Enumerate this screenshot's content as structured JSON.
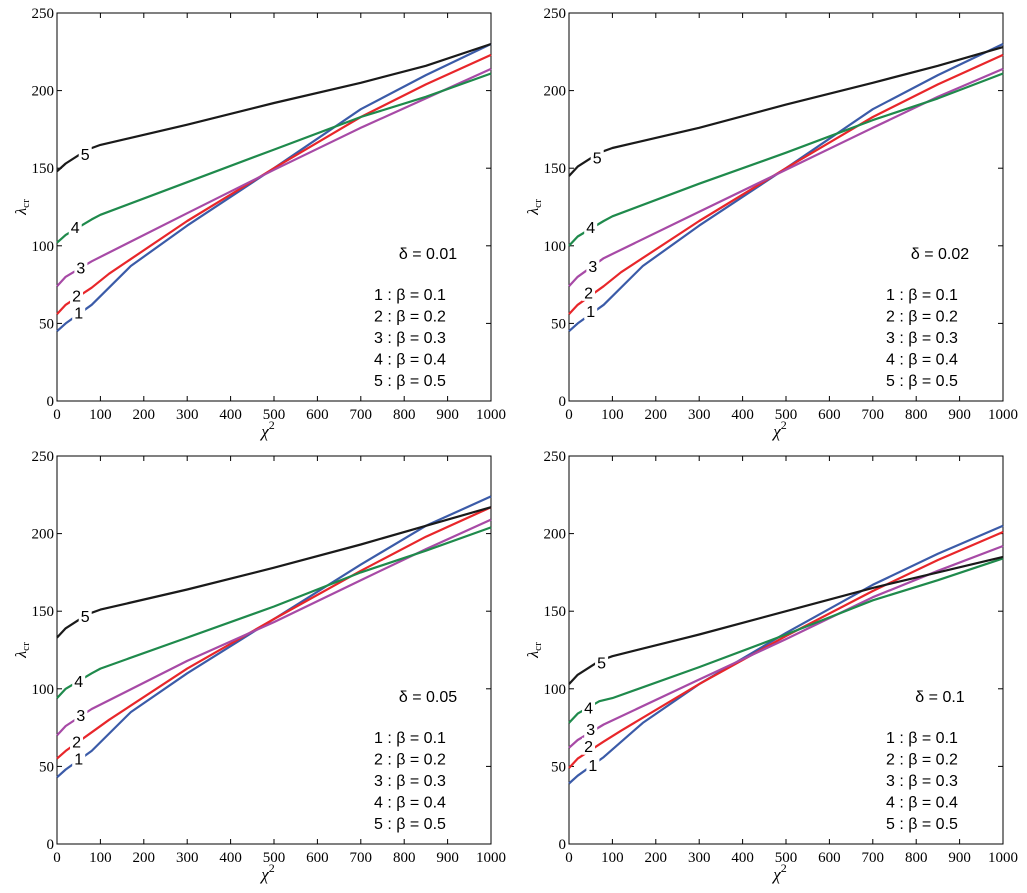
{
  "chart_data": [
    {
      "type": "line",
      "panel": "top-left",
      "xlabel": "χ",
      "xlabel_sup": "2",
      "ylabel": "λ",
      "ylabel_sub": "cr",
      "xlim": [
        0,
        1000
      ],
      "ylim": [
        0,
        250
      ],
      "xticks": [
        "0",
        "100",
        "200",
        "300",
        "400",
        "500",
        "600",
        "700",
        "800",
        "900",
        "1000"
      ],
      "yticks": [
        "0",
        "50",
        "100",
        "150",
        "200",
        "250"
      ],
      "annotation": "δ = 0.01",
      "legend": [
        "1 : β = 0.1",
        "2 : β = 0.2",
        "3 : β = 0.3",
        "4 : β = 0.4",
        "5 : β = 0.5"
      ],
      "series": [
        {
          "name": "1",
          "color": "#3b5ba8",
          "x": [
            0,
            20,
            80,
            170,
            300,
            500,
            700,
            850,
            1000
          ],
          "y": [
            45,
            50,
            62,
            87,
            113,
            150,
            188,
            210,
            230
          ]
        },
        {
          "name": "2",
          "color": "#e8262a",
          "x": [
            0,
            20,
            80,
            120,
            300,
            500,
            700,
            850,
            1000
          ],
          "y": [
            56,
            62,
            73,
            82,
            116,
            150,
            183,
            204,
            223
          ]
        },
        {
          "name": "3",
          "color": "#a74aa6",
          "x": [
            0,
            20,
            80,
            300,
            500,
            700,
            850,
            1000
          ],
          "y": [
            74,
            80,
            90,
            121,
            149,
            176,
            195,
            214
          ]
        },
        {
          "name": "4",
          "color": "#1f8a4c",
          "x": [
            0,
            20,
            80,
            100,
            300,
            500,
            700,
            850,
            1000
          ],
          "y": [
            102,
            107,
            117,
            120,
            141,
            162,
            183,
            196,
            211
          ]
        },
        {
          "name": "5",
          "color": "#1a1a1a",
          "x": [
            0,
            20,
            70,
            100,
            300,
            500,
            700,
            850,
            1000
          ],
          "y": [
            148,
            153,
            162,
            165,
            178,
            192,
            205,
            216,
            230
          ]
        }
      ],
      "curve_labels": [
        {
          "text": "1",
          "x": 50,
          "y": 57
        },
        {
          "text": "2",
          "x": 45,
          "y": 68
        },
        {
          "text": "3",
          "x": 55,
          "y": 86
        },
        {
          "text": "4",
          "x": 42,
          "y": 112
        },
        {
          "text": "5",
          "x": 65,
          "y": 159
        }
      ]
    },
    {
      "type": "line",
      "panel": "top-right",
      "xlabel": "χ",
      "xlabel_sup": "2",
      "ylabel": "λ",
      "ylabel_sub": "cr",
      "xlim": [
        0,
        1000
      ],
      "ylim": [
        0,
        250
      ],
      "xticks": [
        "0",
        "100",
        "200",
        "300",
        "400",
        "500",
        "600",
        "700",
        "800",
        "900",
        "1000"
      ],
      "yticks": [
        "0",
        "50",
        "100",
        "150",
        "200",
        "250"
      ],
      "annotation": "δ = 0.02",
      "legend": [
        "1 : β = 0.1",
        "2 : β = 0.2",
        "3 : β = 0.3",
        "4 : β = 0.4",
        "5 : β = 0.5"
      ],
      "series": [
        {
          "name": "1",
          "color": "#3b5ba8",
          "x": [
            0,
            20,
            80,
            170,
            300,
            500,
            700,
            850,
            1000
          ],
          "y": [
            45,
            50,
            62,
            87,
            113,
            150,
            188,
            210,
            230
          ]
        },
        {
          "name": "2",
          "color": "#e8262a",
          "x": [
            0,
            20,
            80,
            120,
            300,
            500,
            700,
            850,
            1000
          ],
          "y": [
            56,
            62,
            74,
            83,
            116,
            150,
            183,
            204,
            223
          ]
        },
        {
          "name": "3",
          "color": "#a74aa6",
          "x": [
            0,
            20,
            80,
            300,
            500,
            700,
            850,
            1000
          ],
          "y": [
            74,
            80,
            92,
            122,
            149,
            176,
            196,
            214
          ]
        },
        {
          "name": "4",
          "color": "#1f8a4c",
          "x": [
            0,
            20,
            80,
            100,
            300,
            500,
            700,
            850,
            1000
          ],
          "y": [
            100,
            106,
            116,
            119,
            140,
            160,
            181,
            195,
            211
          ]
        },
        {
          "name": "5",
          "color": "#1a1a1a",
          "x": [
            0,
            20,
            70,
            100,
            300,
            500,
            700,
            850,
            1000
          ],
          "y": [
            145,
            151,
            160,
            163,
            176,
            191,
            205,
            216,
            228
          ]
        }
      ],
      "curve_labels": [
        {
          "text": "1",
          "x": 50,
          "y": 58
        },
        {
          "text": "2",
          "x": 45,
          "y": 70
        },
        {
          "text": "3",
          "x": 55,
          "y": 87
        },
        {
          "text": "4",
          "x": 50,
          "y": 112
        },
        {
          "text": "5",
          "x": 65,
          "y": 157
        }
      ]
    },
    {
      "type": "line",
      "panel": "bottom-left",
      "xlabel": "χ",
      "xlabel_sup": "2",
      "ylabel": "λ",
      "ylabel_sub": "cr",
      "xlim": [
        0,
        1000
      ],
      "ylim": [
        0,
        250
      ],
      "xticks": [
        "0",
        "100",
        "200",
        "300",
        "400",
        "500",
        "600",
        "700",
        "800",
        "900",
        "1000"
      ],
      "yticks": [
        "0",
        "50",
        "100",
        "150",
        "200",
        "250"
      ],
      "annotation": "δ = 0.05",
      "legend": [
        "1 : β = 0.1",
        "2 : β = 0.2",
        "3 : β = 0.3",
        "4 : β = 0.4",
        "5 : β = 0.5"
      ],
      "series": [
        {
          "name": "1",
          "color": "#3b5ba8",
          "x": [
            0,
            20,
            80,
            170,
            300,
            500,
            700,
            850,
            1000
          ],
          "y": [
            43,
            48,
            60,
            85,
            110,
            145,
            180,
            205,
            224
          ]
        },
        {
          "name": "2",
          "color": "#e8262a",
          "x": [
            0,
            20,
            80,
            120,
            300,
            500,
            700,
            850,
            1000
          ],
          "y": [
            55,
            60,
            72,
            80,
            113,
            145,
            176,
            198,
            217
          ]
        },
        {
          "name": "3",
          "color": "#a74aa6",
          "x": [
            0,
            20,
            80,
            300,
            500,
            700,
            850,
            1000
          ],
          "y": [
            70,
            76,
            87,
            118,
            143,
            170,
            190,
            209
          ]
        },
        {
          "name": "4",
          "color": "#1f8a4c",
          "x": [
            0,
            20,
            80,
            100,
            300,
            500,
            700,
            850,
            1000
          ],
          "y": [
            94,
            100,
            110,
            113,
            133,
            153,
            175,
            189,
            204
          ]
        },
        {
          "name": "5",
          "color": "#1a1a1a",
          "x": [
            0,
            20,
            70,
            100,
            300,
            500,
            700,
            850,
            1000
          ],
          "y": [
            133,
            139,
            148,
            151,
            164,
            178,
            193,
            205,
            217
          ]
        }
      ],
      "curve_labels": [
        {
          "text": "1",
          "x": 50,
          "y": 55
        },
        {
          "text": "2",
          "x": 45,
          "y": 66
        },
        {
          "text": "3",
          "x": 55,
          "y": 83
        },
        {
          "text": "4",
          "x": 50,
          "y": 105
        },
        {
          "text": "5",
          "x": 65,
          "y": 147
        }
      ]
    },
    {
      "type": "line",
      "panel": "bottom-right",
      "xlabel": "χ",
      "xlabel_sup": "2",
      "ylabel": "λ",
      "ylabel_sub": "cr",
      "xlim": [
        0,
        1000
      ],
      "ylim": [
        0,
        250
      ],
      "xticks": [
        "0",
        "100",
        "200",
        "300",
        "400",
        "500",
        "600",
        "700",
        "800",
        "900",
        "1000"
      ],
      "yticks": [
        "0",
        "50",
        "100",
        "150",
        "200",
        "250"
      ],
      "annotation": "δ = 0.1",
      "legend": [
        "1 : β = 0.1",
        "2 : β = 0.2",
        "3 : β = 0.3",
        "4 : β = 0.4",
        "5 : β = 0.5"
      ],
      "series": [
        {
          "name": "1",
          "color": "#3b5ba8",
          "x": [
            0,
            20,
            80,
            170,
            300,
            500,
            700,
            850,
            1000
          ],
          "y": [
            39,
            44,
            56,
            78,
            103,
            136,
            167,
            187,
            205
          ]
        },
        {
          "name": "2",
          "color": "#e8262a",
          "x": [
            0,
            20,
            80,
            120,
            300,
            500,
            700,
            850,
            1000
          ],
          "y": [
            49,
            55,
            66,
            73,
            103,
            134,
            163,
            183,
            201
          ]
        },
        {
          "name": "3",
          "color": "#a74aa6",
          "x": [
            0,
            20,
            80,
            300,
            500,
            700,
            850,
            1000
          ],
          "y": [
            62,
            67,
            77,
            106,
            132,
            159,
            176,
            192
          ]
        },
        {
          "name": "4",
          "color": "#1f8a4c",
          "x": [
            0,
            20,
            70,
            100,
            300,
            500,
            700,
            850,
            1000
          ],
          "y": [
            78,
            84,
            92,
            94,
            114,
            135,
            157,
            170,
            184
          ]
        },
        {
          "name": "5",
          "color": "#1a1a1a",
          "x": [
            0,
            20,
            70,
            100,
            300,
            500,
            700,
            850,
            1000
          ],
          "y": [
            103,
            109,
            118,
            121,
            135,
            150,
            165,
            175,
            185
          ]
        }
      ],
      "curve_labels": [
        {
          "text": "1",
          "x": 55,
          "y": 51
        },
        {
          "text": "2",
          "x": 45,
          "y": 63
        },
        {
          "text": "3",
          "x": 50,
          "y": 74
        },
        {
          "text": "4",
          "x": 45,
          "y": 88
        },
        {
          "text": "5",
          "x": 75,
          "y": 117
        }
      ]
    }
  ]
}
